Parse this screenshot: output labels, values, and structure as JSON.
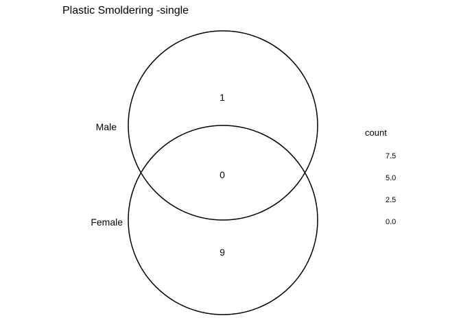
{
  "title": "Plastic Smoldering -single",
  "chart_data": {
    "type": "venn",
    "sets": [
      {
        "name": "Male"
      },
      {
        "name": "Female"
      }
    ],
    "regions": [
      {
        "sets": [
          "Male"
        ],
        "count": 1
      },
      {
        "sets": [
          "Male",
          "Female"
        ],
        "count": 0
      },
      {
        "sets": [
          "Female"
        ],
        "count": 9
      }
    ],
    "legend": {
      "title": "count",
      "ticks": [
        "7.5",
        "5.0",
        "2.5",
        "0.0"
      ],
      "placement": "right"
    },
    "colors": {
      "outline": "#000000",
      "background": "#ffffff"
    }
  }
}
